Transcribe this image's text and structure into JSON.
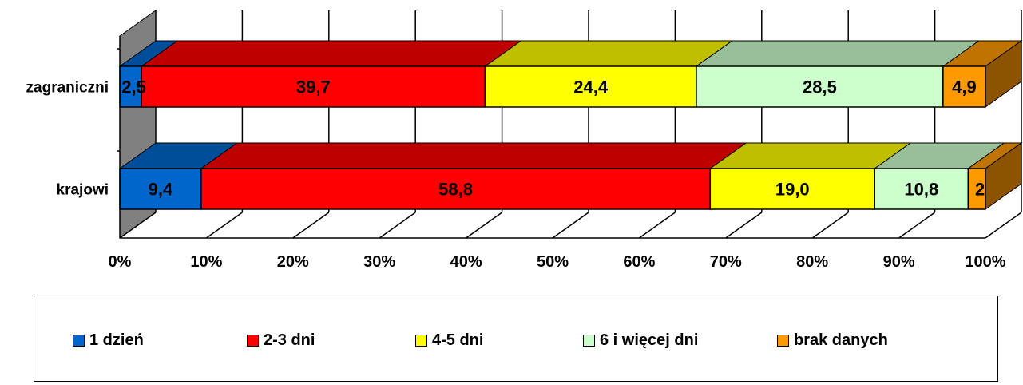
{
  "chart_data": {
    "type": "bar",
    "orientation": "horizontal",
    "stacked": "percent",
    "style": "3d",
    "categories": [
      "zagraniczni",
      "krajowi"
    ],
    "series": [
      {
        "name": "1 dzień",
        "color": "#0066cc",
        "values": [
          2.5,
          9.4
        ],
        "labels": [
          "2,5",
          "9,4"
        ]
      },
      {
        "name": "2-3 dni",
        "color": "#ff0000",
        "values": [
          39.7,
          58.8
        ],
        "labels": [
          "39,7",
          "58,8"
        ]
      },
      {
        "name": "4-5 dni",
        "color": "#ffff00",
        "values": [
          24.4,
          19.0
        ],
        "labels": [
          "24,4",
          "19,0"
        ]
      },
      {
        "name": "6 i więcej dni",
        "color": "#ccffcc",
        "values": [
          28.5,
          10.8
        ],
        "labels": [
          "28,5",
          "10,8"
        ]
      },
      {
        "name": "brak danych",
        "color": "#ff9900",
        "values": [
          4.9,
          2.0
        ],
        "labels": [
          "4,9",
          "2"
        ]
      }
    ],
    "x_ticks": [
      "0%",
      "10%",
      "20%",
      "30%",
      "40%",
      "50%",
      "60%",
      "70%",
      "80%",
      "90%",
      "100%"
    ],
    "xlim": [
      0,
      100
    ],
    "grid": true,
    "legend_position": "bottom"
  }
}
